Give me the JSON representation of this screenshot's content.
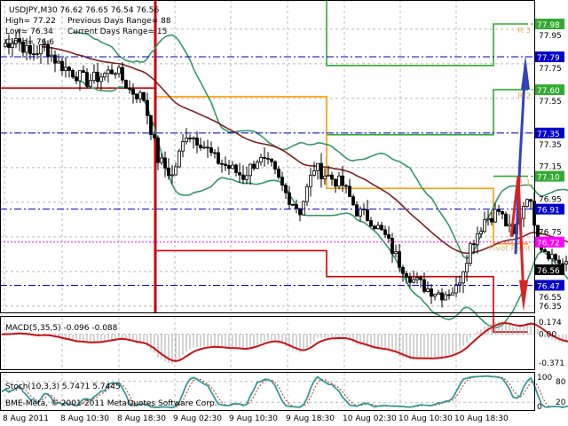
{
  "header": {
    "symbol_line": "USDJPY,M30  76.62 76.65 76.54 76.56",
    "high": "High= 77.22",
    "prev_range": "Previous Days Range= 88",
    "low": "Low= 76.34",
    "cur_range": "Current Days Range= 15",
    "close": "Close= 76.6"
  },
  "chart_data": {
    "type": "candlestick",
    "symbol": "USDJPY",
    "timeframe": "M30",
    "ohlc_last": {
      "open": 76.62,
      "high": 76.65,
      "low": 76.54,
      "close": 76.56
    },
    "ylim": [
      76.3,
      78.1
    ],
    "price_ticks": [
      "77.95",
      "77.75",
      "77.55",
      "77.35",
      "77.15",
      "76.95",
      "76.75",
      "76.55",
      "76.35"
    ],
    "time_labels": [
      "8 Aug 2011",
      "8 Aug 10:30",
      "8 Aug 18:30",
      "9 Aug 02:30",
      "9 Aug 10:30",
      "9 Aug 18:30",
      "10 Aug 02:30",
      "10 Aug 10:30",
      "10 Aug 18:30"
    ],
    "closes_2h": [
      77.85,
      77.9,
      77.8,
      77.85,
      77.75,
      77.7,
      77.65,
      77.68,
      77.72,
      77.6,
      77.55,
      77.2,
      77.1,
      77.35,
      77.3,
      77.2,
      77.15,
      77.1,
      77.2,
      77.15,
      77.0,
      76.9,
      77.15,
      77.1,
      77.05,
      76.9,
      76.85,
      76.75,
      76.6,
      76.5,
      76.45,
      76.42,
      76.45,
      76.7,
      76.85,
      76.9,
      76.75,
      77.0,
      76.7,
      76.62,
      76.56
    ],
    "levels": [
      {
        "label": "77.98",
        "price": 77.98,
        "color": "#33aa33",
        "name": "R 3"
      },
      {
        "label": "77.79",
        "price": 77.79,
        "color": "#0000cc"
      },
      {
        "label": "77.60",
        "price": 77.6,
        "color": "#33aa33",
        "name": "R 2"
      },
      {
        "label": "77.35",
        "price": 77.35,
        "color": "#0000cc"
      },
      {
        "label": "77.10",
        "price": 77.1,
        "color": "#33aa33",
        "name": "R 1"
      },
      {
        "label": "76.91",
        "price": 76.91,
        "color": "#0000cc"
      },
      {
        "label": "76.72",
        "price": 76.72,
        "color": "#ff00ff",
        "name": "Pivot Point"
      },
      {
        "label": "76.56",
        "price": 76.56,
        "color": "#000000"
      },
      {
        "label": "76.47",
        "price": 76.47,
        "color": "#0000cc"
      }
    ],
    "macd": {
      "label": "MACD(5,35,5) -0.096 -0.088",
      "ticks": [
        "0.174",
        "0.00",
        "-0.371"
      ],
      "range": [
        -0.371,
        0.174
      ]
    },
    "stoch": {
      "label": "Stoch(10,3,3) 5.7471 5.7445",
      "ticks": [
        "100",
        "80",
        "20",
        "0"
      ]
    },
    "copyright": "BME-Meta, © 2001-2011 MetaQuotes Software Corp."
  }
}
